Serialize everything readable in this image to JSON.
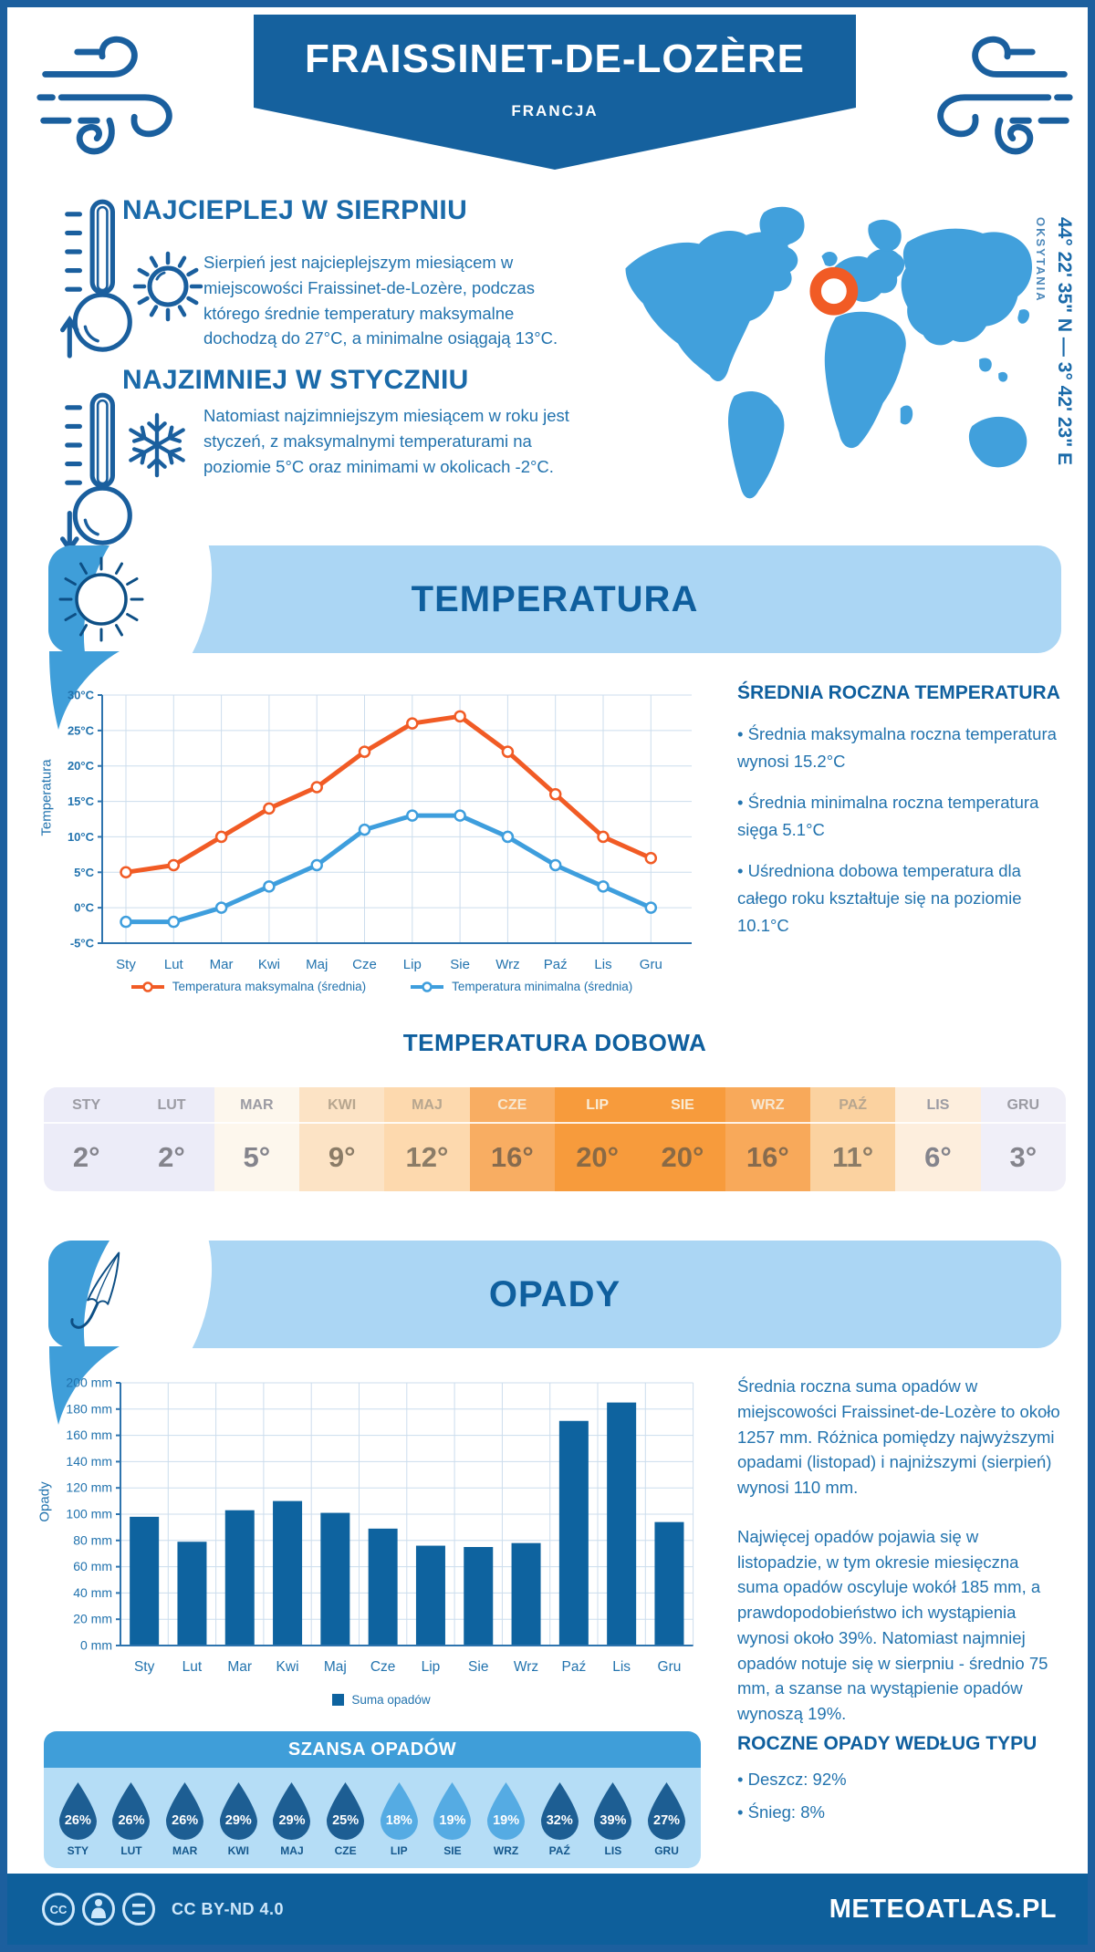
{
  "header": {
    "title": "FRAISSINET-DE-LOZÈRE",
    "subtitle": "FRANCJA"
  },
  "intro": {
    "warm": {
      "title": "NAJCIEPLEJ W SIERPNIU",
      "text": "Sierpień jest najcieplejszym miesiącem w miejscowości Fraissinet-de-Lozère, podczas którego średnie temperatury maksymalne dochodzą do 27°C, a minimalne osiągają 13°C."
    },
    "cold": {
      "title": "NAJZIMNIEJ W STYCZNIU",
      "text": "Natomiast najzimniejszym miesiącem w roku jest styczeń, z maksymalnymi temperaturami na poziomie 5°C oraz minimami w okolicach -2°C."
    }
  },
  "map": {
    "coords": "44° 22' 35\" N — 3° 42' 23\" E",
    "region": "OKSYTANIA",
    "marker_color": "#f15b25"
  },
  "sections": {
    "temperature": "TEMPERATURA",
    "daily": "TEMPERATURA DOBOWA",
    "precipitation": "OPADY",
    "rain_chance": "SZANSA OPADÓW"
  },
  "annual": {
    "heading": "ŚREDNIA ROCZNA TEMPERATURA",
    "bullets": [
      "• Średnia maksymalna roczna temperatura wynosi 15.2°C",
      "• Średnia minimalna roczna temperatura sięga 5.1°C",
      "• Uśredniona dobowa temperatura dla całego roku kształtuje się na poziomie 10.1°C"
    ]
  },
  "chart_data": [
    {
      "type": "line",
      "categories": [
        "Sty",
        "Lut",
        "Mar",
        "Kwi",
        "Maj",
        "Cze",
        "Lip",
        "Sie",
        "Wrz",
        "Paź",
        "Lis",
        "Gru"
      ],
      "series": [
        {
          "name": "Temperatura maksymalna (średnia)",
          "color": "#f15b25",
          "values": [
            5,
            6,
            10,
            14,
            17,
            22,
            26,
            27,
            22,
            16,
            10,
            7
          ]
        },
        {
          "name": "Temperatura minimalna (średnia)",
          "color": "#3e9edd",
          "values": [
            -2,
            -2,
            0,
            3,
            6,
            11,
            13,
            13,
            10,
            6,
            3,
            0
          ]
        }
      ],
      "ylabel": "Temperatura",
      "xlabel": "",
      "ylim": [
        -5,
        30
      ],
      "ytick_step": 5,
      "yunit": "°C",
      "grid": true,
      "legend_position": "bottom"
    },
    {
      "type": "bar",
      "categories": [
        "Sty",
        "Lut",
        "Mar",
        "Kwi",
        "Maj",
        "Cze",
        "Lip",
        "Sie",
        "Wrz",
        "Paź",
        "Lis",
        "Gru"
      ],
      "series": [
        {
          "name": "Suma opadów",
          "color": "#0e639f",
          "values": [
            98,
            79,
            103,
            110,
            101,
            89,
            76,
            75,
            78,
            171,
            185,
            94
          ]
        }
      ],
      "ylabel": "Opady",
      "xlabel": "",
      "ylim": [
        0,
        200
      ],
      "ytick_step": 20,
      "yunit": " mm",
      "grid": true,
      "legend_position": "bottom"
    }
  ],
  "daily": {
    "columns": [
      {
        "month": "STY",
        "value": "2°",
        "bg": "#ececf8",
        "mon_fg": "#9b9ba3",
        "val_fg": "#84848c"
      },
      {
        "month": "LUT",
        "value": "2°",
        "bg": "#ececf8",
        "mon_fg": "#9b9ba3",
        "val_fg": "#84848c"
      },
      {
        "month": "MAR",
        "value": "5°",
        "bg": "#fdf7ed",
        "mon_fg": "#9b9ba3",
        "val_fg": "#84848c"
      },
      {
        "month": "KWI",
        "value": "9°",
        "bg": "#fce3c5",
        "mon_fg": "#b7a68f",
        "val_fg": "#8b7c67"
      },
      {
        "month": "MAJ",
        "value": "12°",
        "bg": "#fdd9ae",
        "mon_fg": "#b7a68f",
        "val_fg": "#8b7c67"
      },
      {
        "month": "CZE",
        "value": "16°",
        "bg": "#f8ad62",
        "mon_fg": "#f7e8d2",
        "val_fg": "#876b4e"
      },
      {
        "month": "LIP",
        "value": "20°",
        "bg": "#f79b3c",
        "mon_fg": "#f9ecd6",
        "val_fg": "#8a6a45"
      },
      {
        "month": "SIE",
        "value": "20°",
        "bg": "#f79b3c",
        "mon_fg": "#f9ecd6",
        "val_fg": "#8a6a45"
      },
      {
        "month": "WRZ",
        "value": "16°",
        "bg": "#f8a95a",
        "mon_fg": "#f7e8d2",
        "val_fg": "#876b4e"
      },
      {
        "month": "PAŹ",
        "value": "11°",
        "bg": "#fbd2a0",
        "mon_fg": "#b7a68f",
        "val_fg": "#8b7c67"
      },
      {
        "month": "LIS",
        "value": "6°",
        "bg": "#fdeedd",
        "mon_fg": "#9b9ba3",
        "val_fg": "#84848c"
      },
      {
        "month": "GRU",
        "value": "3°",
        "bg": "#f0eff8",
        "mon_fg": "#9b9ba3",
        "val_fg": "#84848c"
      }
    ]
  },
  "precip": {
    "p1": "Średnia roczna suma opadów w miejscowości Fraissinet-de-Lozère to około 1257 mm. Różnica pomiędzy najwyższymi opadami (listopad) i najniższymi (sierpień) wynosi 110 mm.",
    "p2": "Najwięcej opadów pojawia się w listopadzie, w tym okresie miesięczna suma opadów oscyluje wokół 185 mm, a prawdopodobieństwo ich wystąpienia wynosi około 39%. Natomiast najmniej opadów notuje się w sierpniu - średnio 75 mm, a szanse na wystąpienie opadów wynoszą 19%.",
    "type_heading": "ROCZNE OPADY WEDŁUG TYPU",
    "type_bullets": [
      "• Deszcz: 92%",
      "• Śnieg: 8%"
    ]
  },
  "rain": {
    "tones": {
      "dark": "#1d5e93",
      "light": "#55abe3"
    },
    "items": [
      {
        "label": "STY",
        "pct": "26%",
        "tone": "dark"
      },
      {
        "label": "LUT",
        "pct": "26%",
        "tone": "dark"
      },
      {
        "label": "MAR",
        "pct": "26%",
        "tone": "dark"
      },
      {
        "label": "KWI",
        "pct": "29%",
        "tone": "dark"
      },
      {
        "label": "MAJ",
        "pct": "29%",
        "tone": "dark"
      },
      {
        "label": "CZE",
        "pct": "25%",
        "tone": "dark"
      },
      {
        "label": "LIP",
        "pct": "18%",
        "tone": "light"
      },
      {
        "label": "SIE",
        "pct": "19%",
        "tone": "light"
      },
      {
        "label": "WRZ",
        "pct": "19%",
        "tone": "light"
      },
      {
        "label": "PAŹ",
        "pct": "32%",
        "tone": "dark"
      },
      {
        "label": "LIS",
        "pct": "39%",
        "tone": "dark"
      },
      {
        "label": "GRU",
        "pct": "27%",
        "tone": "dark"
      }
    ]
  },
  "footer": {
    "license": "CC BY-ND 4.0",
    "brand": "METEOATLAS.PL"
  }
}
